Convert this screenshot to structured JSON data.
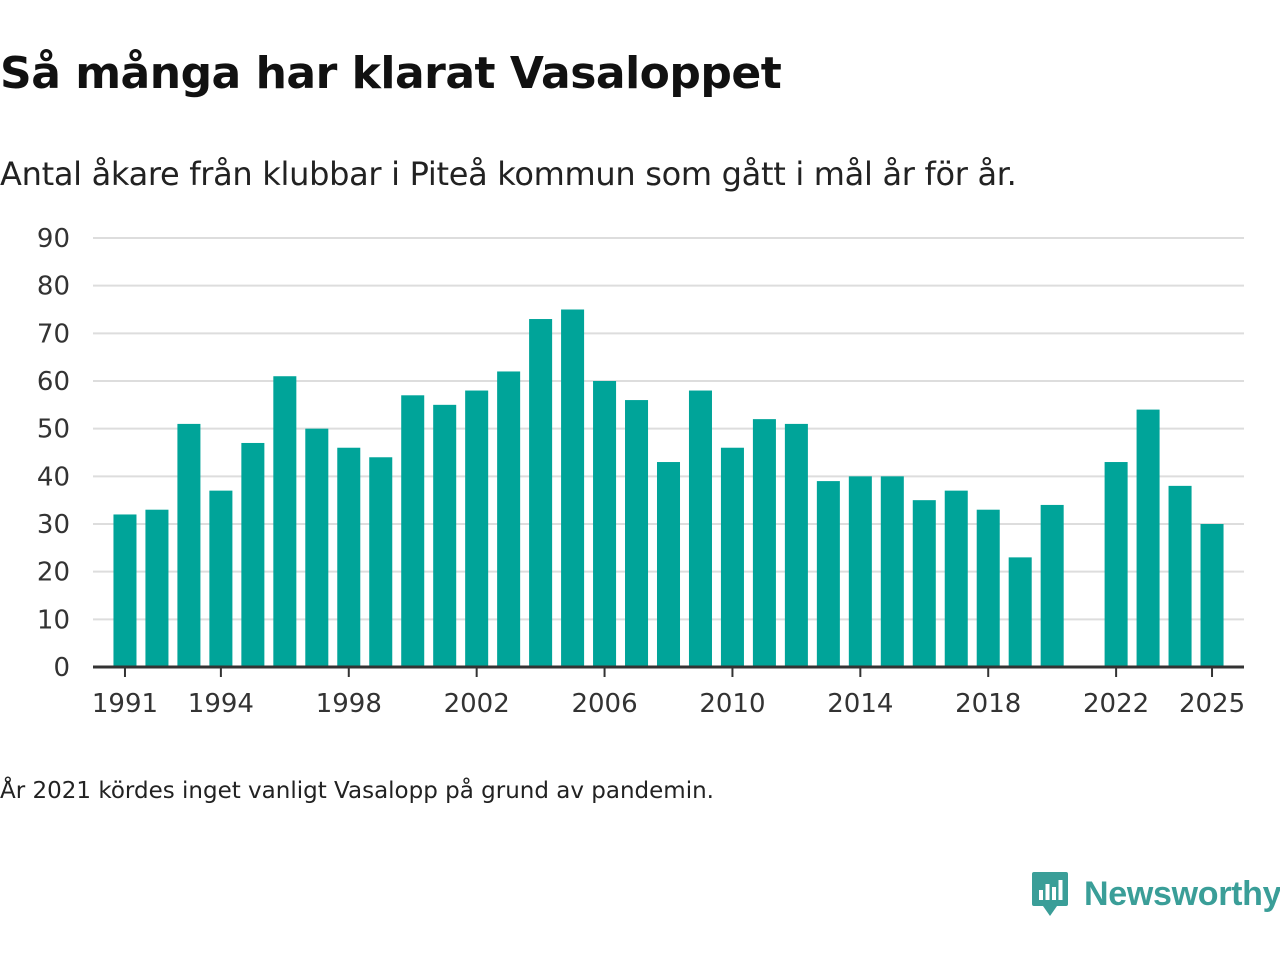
{
  "title": "Så många har klarat Vasaloppet",
  "subtitle": "Antal åkare från klubbar i Piteå kommun som gått i mål år för år.",
  "note": "År 2021 kördes inget vanligt Vasalopp på grund av pandemin.",
  "brand": {
    "name": "Newsworthy",
    "icon": "newsworthy-logo-icon",
    "color": "#3a9e98"
  },
  "colors": {
    "bar": "#00a499",
    "grid": "#dddddd",
    "axis": "#333333",
    "text": "#333333"
  },
  "chart_data": {
    "type": "bar",
    "title": "Så många har klarat Vasaloppet",
    "xlabel": "",
    "ylabel": "",
    "ylim": [
      0,
      90
    ],
    "yticks": [
      0,
      10,
      20,
      30,
      40,
      50,
      60,
      70,
      80,
      90
    ],
    "xticks": [
      1991,
      1994,
      1998,
      2002,
      2006,
      2010,
      2014,
      2018,
      2022,
      2025
    ],
    "xlim": [
      1990,
      2026
    ],
    "grid": true,
    "categories": [
      1991,
      1992,
      1993,
      1994,
      1995,
      1996,
      1997,
      1998,
      1999,
      2000,
      2001,
      2002,
      2003,
      2004,
      2005,
      2006,
      2007,
      2008,
      2009,
      2010,
      2011,
      2012,
      2013,
      2014,
      2015,
      2016,
      2017,
      2018,
      2019,
      2020,
      2022,
      2023,
      2024,
      2025
    ],
    "values": [
      32,
      33,
      51,
      37,
      47,
      61,
      50,
      46,
      44,
      57,
      55,
      58,
      62,
      73,
      75,
      60,
      56,
      43,
      58,
      46,
      52,
      51,
      39,
      40,
      40,
      35,
      37,
      33,
      23,
      34,
      43,
      54,
      38,
      30
    ]
  }
}
